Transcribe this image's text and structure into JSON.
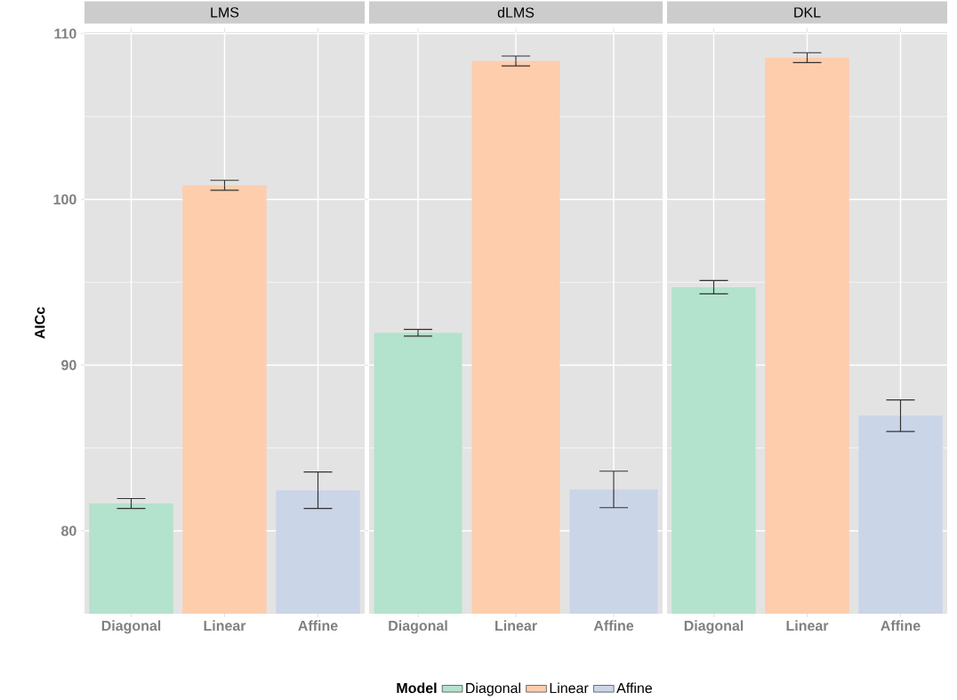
{
  "chart_data": [
    {
      "type": "bar",
      "title": "LMS",
      "ylabel": "AICc",
      "categories": [
        "Diagonal",
        "Linear",
        "Affine"
      ],
      "ylim": [
        75,
        110.1
      ],
      "yticks": [
        80,
        90,
        100,
        110
      ],
      "grid": true,
      "legend": "bottom",
      "legend_title": "Model",
      "series": [
        {
          "name": "Diagonal",
          "color": "#b3e2cd",
          "values": [
            81.65,
            null,
            null
          ],
          "errors": [
            0.3,
            null,
            null
          ]
        },
        {
          "name": "Linear",
          "color": "#fdcdac",
          "values": [
            null,
            100.85,
            null
          ],
          "errors": [
            null,
            0.3,
            null
          ]
        },
        {
          "name": "Affine",
          "color": "#cbd5e8",
          "values": [
            null,
            null,
            82.45
          ],
          "errors": [
            null,
            null,
            1.1
          ]
        }
      ]
    },
    {
      "type": "bar",
      "title": "dLMS",
      "categories": [
        "Diagonal",
        "Linear",
        "Affine"
      ],
      "ylim": [
        75,
        110.1
      ],
      "yticks": [
        80,
        90,
        100,
        110
      ],
      "grid": true,
      "tick_labels": "x",
      "series": [
        {
          "color": "#b3e2cd",
          "values": [
            91.95,
            null,
            null
          ],
          "errors": [
            0.2,
            null,
            null
          ]
        },
        {
          "color": "#fdcdac",
          "values": [
            null,
            108.35,
            null
          ],
          "errors": [
            null,
            0.3,
            null
          ]
        },
        {
          "color": "#cbd5e8",
          "values": [
            null,
            null,
            82.5
          ],
          "errors": [
            null,
            null,
            1.1
          ]
        }
      ]
    },
    {
      "type": "bar",
      "title": "DKL",
      "categories": [
        "Diagonal",
        "Linear",
        "Affine"
      ],
      "ylim": [
        75,
        110.1
      ],
      "yticks": [
        80,
        90,
        100,
        110
      ],
      "grid": true,
      "tick_labels": "x",
      "series": [
        {
          "color": "#b3e2cd",
          "values": [
            94.7,
            null,
            null
          ],
          "errors": [
            0.4,
            null,
            null
          ]
        },
        {
          "color": "#fdcdac",
          "values": [
            null,
            108.55,
            null
          ],
          "errors": [
            null,
            0.3,
            null
          ]
        },
        {
          "color": "#cbd5e8",
          "values": [
            null,
            null,
            86.95
          ],
          "errors": [
            null,
            null,
            0.95
          ]
        }
      ]
    }
  ]
}
